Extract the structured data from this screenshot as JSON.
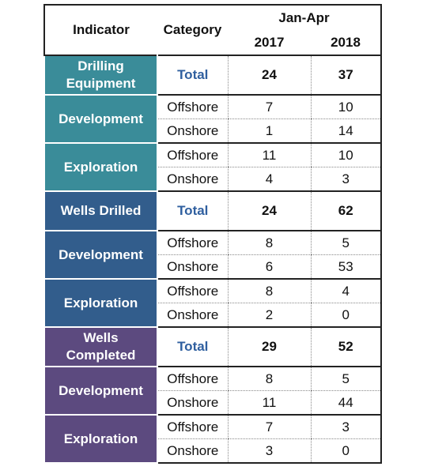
{
  "table": {
    "header": {
      "indicator": "Indicator",
      "category": "Category",
      "period": "Jan-Apr",
      "years": [
        "2017",
        "2018"
      ]
    },
    "sections": [
      {
        "name": "Drilling Equipment",
        "total": {
          "label": "Total",
          "values": [
            24,
            37
          ]
        },
        "groups": [
          {
            "name": "Development",
            "rows": [
              {
                "category": "Offshore",
                "values": [
                  7,
                  10
                ]
              },
              {
                "category": "Onshore",
                "values": [
                  1,
                  14
                ]
              }
            ]
          },
          {
            "name": "Exploration",
            "rows": [
              {
                "category": "Offshore",
                "values": [
                  11,
                  10
                ]
              },
              {
                "category": "Onshore",
                "values": [
                  4,
                  3
                ]
              }
            ]
          }
        ]
      },
      {
        "name": "Wells Drilled",
        "total": {
          "label": "Total",
          "values": [
            24,
            62
          ]
        },
        "groups": [
          {
            "name": "Development",
            "rows": [
              {
                "category": "Offshore",
                "values": [
                  8,
                  5
                ]
              },
              {
                "category": "Onshore",
                "values": [
                  6,
                  53
                ]
              }
            ]
          },
          {
            "name": "Exploration",
            "rows": [
              {
                "category": "Offshore",
                "values": [
                  8,
                  4
                ]
              },
              {
                "category": "Onshore",
                "values": [
                  2,
                  0
                ]
              }
            ]
          }
        ]
      },
      {
        "name": "Wells Completed",
        "total": {
          "label": "Total",
          "values": [
            29,
            52
          ]
        },
        "groups": [
          {
            "name": "Development",
            "rows": [
              {
                "category": "Offshore",
                "values": [
                  8,
                  5
                ]
              },
              {
                "category": "Onshore",
                "values": [
                  11,
                  44
                ]
              }
            ]
          },
          {
            "name": "Exploration",
            "rows": [
              {
                "category": "Offshore",
                "values": [
                  7,
                  3
                ]
              },
              {
                "category": "Onshore",
                "values": [
                  3,
                  0
                ]
              }
            ]
          }
        ]
      }
    ]
  }
}
